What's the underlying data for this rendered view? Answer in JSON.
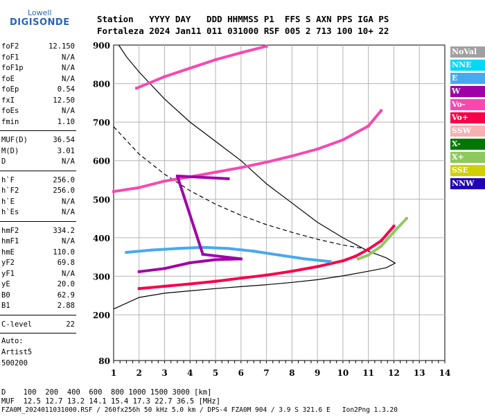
{
  "logo": {
    "top": "Lowell",
    "main": "DIGISONDE"
  },
  "header": {
    "line1": "Station   YYYY DAY   DDD HHMMSS P1  FFS S AXN PPS IGA PS",
    "line2": "Fortaleza 2024 Jan11 011 031000 RSF 005 2 713 100 10+ 22"
  },
  "params_groups": [
    [
      [
        "foF2",
        "12.150"
      ],
      [
        "foF1",
        "N/A"
      ],
      [
        "foF1p",
        "N/A"
      ],
      [
        "foE",
        "N/A"
      ],
      [
        "foEp",
        "0.54"
      ],
      [
        "fxI",
        "12.50"
      ],
      [
        "foEs",
        "N/A"
      ],
      [
        "fmin",
        "1.10"
      ]
    ],
    [
      [
        "MUF(D)",
        "36.54"
      ],
      [
        "M(D)",
        "3.01"
      ],
      [
        "D",
        "N/A"
      ]
    ],
    [
      [
        "h`F",
        "256.0"
      ],
      [
        "h`F2",
        "256.0"
      ],
      [
        "h`E",
        "N/A"
      ],
      [
        "h`Es",
        "N/A"
      ]
    ],
    [
      [
        "hmF2",
        "334.2"
      ],
      [
        "hmF1",
        "N/A"
      ],
      [
        "hmE",
        "110.0"
      ],
      [
        "yF2",
        "69.8"
      ],
      [
        "yF1",
        "N/A"
      ],
      [
        "yE",
        "20.0"
      ],
      [
        "B0",
        "62.9"
      ],
      [
        "B1",
        "2.88"
      ]
    ],
    [
      [
        "C-level",
        "22"
      ]
    ]
  ],
  "auto": {
    "l1": "Auto:",
    "l2": "Artist5",
    "l3": "500200"
  },
  "legend": [
    {
      "label": "NoVal",
      "color": "#a0a0a0"
    },
    {
      "label": "NNE",
      "color": "#00d8f8"
    },
    {
      "label": "E",
      "color": "#48a8f0"
    },
    {
      "label": "W",
      "color": "#a000a8"
    },
    {
      "label": "Vo-",
      "color": "#f848b0"
    },
    {
      "label": "Vo+",
      "color": "#f80048"
    },
    {
      "label": "SSW",
      "color": "#f8b0b0"
    },
    {
      "label": "X-",
      "color": "#007800"
    },
    {
      "label": "X+",
      "color": "#90c860"
    },
    {
      "label": "SSE",
      "color": "#d0d000"
    },
    {
      "label": "NNW",
      "color": "#2000b8"
    }
  ],
  "footer": {
    "line1": "D    100  200  400  600  800 1000 1500 3000 [km]",
    "line2": "MUF  12.5 12.7 13.2 14.1 15.4 17.3 22.7 36.5 [MHz]",
    "line3": "FZA0M_2024011031000.RSF / 260fx256h 50 kHz 5.0 km / DPS-4 FZA0M 904 / 3.9 S 321.6 E   Ion2Png 1.3.20"
  },
  "chart_data": {
    "type": "scatter",
    "x_ticks": [
      "1",
      "2",
      "3",
      "4",
      "5",
      "6",
      "7",
      "8",
      "9",
      "10",
      "11",
      "12",
      "13",
      "14"
    ],
    "y_ticks": [
      "80",
      "200",
      "300",
      "400",
      "500",
      "600",
      "700",
      "800",
      "900"
    ],
    "xlim": [
      1,
      14
    ],
    "y_axis_scale": "piecewise (80 at bottom, then linear 200-900)",
    "grid": true,
    "series": [
      {
        "name": "Vo+",
        "color": "#f80048",
        "points": [
          [
            2.0,
            268
          ],
          [
            3.0,
            274
          ],
          [
            4.0,
            280
          ],
          [
            5.0,
            287
          ],
          [
            6.0,
            295
          ],
          [
            7.0,
            303
          ],
          [
            8.0,
            313
          ],
          [
            9.0,
            325
          ],
          [
            10.0,
            340
          ],
          [
            10.5,
            352
          ],
          [
            11.0,
            370
          ],
          [
            11.5,
            392
          ],
          [
            12.0,
            430
          ]
        ]
      },
      {
        "name": "Vo-",
        "color": "#f848b0",
        "points": [
          [
            1.0,
            520
          ],
          [
            2.0,
            530
          ],
          [
            3.0,
            547
          ],
          [
            4.0,
            558
          ],
          [
            5.0,
            570
          ],
          [
            6.0,
            582
          ],
          [
            7.0,
            596
          ],
          [
            8.0,
            612
          ],
          [
            9.0,
            630
          ],
          [
            10.0,
            654
          ],
          [
            11.0,
            690
          ],
          [
            11.5,
            730
          ]
        ]
      },
      {
        "name": "Vo-",
        "color": "#f848b0",
        "points": [
          [
            1.9,
            788
          ],
          [
            3.0,
            818
          ],
          [
            4.0,
            840
          ],
          [
            5.0,
            862
          ],
          [
            6.0,
            880
          ],
          [
            7.0,
            897
          ]
        ]
      },
      {
        "name": "E",
        "color": "#48a8f0",
        "points": [
          [
            1.5,
            362
          ],
          [
            2.5,
            368
          ],
          [
            3.5,
            372
          ],
          [
            4.5,
            375
          ],
          [
            5.5,
            372
          ],
          [
            6.5,
            365
          ],
          [
            7.5,
            355
          ],
          [
            8.5,
            345
          ],
          [
            9.5,
            338
          ]
        ]
      },
      {
        "name": "W",
        "color": "#a000a8",
        "points": [
          [
            2.0,
            312
          ],
          [
            3.0,
            320
          ],
          [
            4.0,
            335
          ],
          [
            5.0,
            343
          ],
          [
            6.0,
            345
          ],
          [
            4.5,
            357
          ],
          [
            3.5,
            560
          ],
          [
            5.5,
            553
          ]
        ]
      },
      {
        "name": "X+",
        "color": "#90c860",
        "points": [
          [
            10.6,
            345
          ],
          [
            11.0,
            355
          ],
          [
            11.5,
            378
          ],
          [
            12.0,
            415
          ],
          [
            12.5,
            450
          ]
        ]
      }
    ],
    "profile_curve": {
      "points": [
        [
          1.0,
          215
        ],
        [
          2.0,
          245
        ],
        [
          3.0,
          256
        ],
        [
          4.0,
          262
        ],
        [
          5.0,
          268
        ],
        [
          6.0,
          273
        ],
        [
          7.0,
          278
        ],
        [
          8.0,
          284
        ],
        [
          9.0,
          291
        ],
        [
          10.0,
          301
        ],
        [
          11.0,
          313
        ],
        [
          11.7,
          322
        ],
        [
          12.05,
          334
        ],
        [
          11.7,
          348
        ],
        [
          11.0,
          365
        ],
        [
          10.0,
          400
        ],
        [
          9.0,
          440
        ],
        [
          8.0,
          490
        ],
        [
          7.0,
          540
        ],
        [
          6.0,
          600
        ],
        [
          5.0,
          650
        ],
        [
          4.0,
          700
        ],
        [
          3.0,
          760
        ],
        [
          2.0,
          830
        ],
        [
          1.5,
          870
        ],
        [
          1.2,
          900
        ]
      ]
    },
    "muf_curve": {
      "points": [
        [
          1.0,
          688
        ],
        [
          2.0,
          617
        ],
        [
          3.0,
          565
        ],
        [
          4.0,
          522
        ],
        [
          5.0,
          487
        ],
        [
          6.0,
          458
        ],
        [
          7.0,
          434
        ],
        [
          8.0,
          414
        ],
        [
          9.0,
          396
        ],
        [
          10.0,
          381
        ],
        [
          10.8,
          372
        ]
      ]
    }
  }
}
